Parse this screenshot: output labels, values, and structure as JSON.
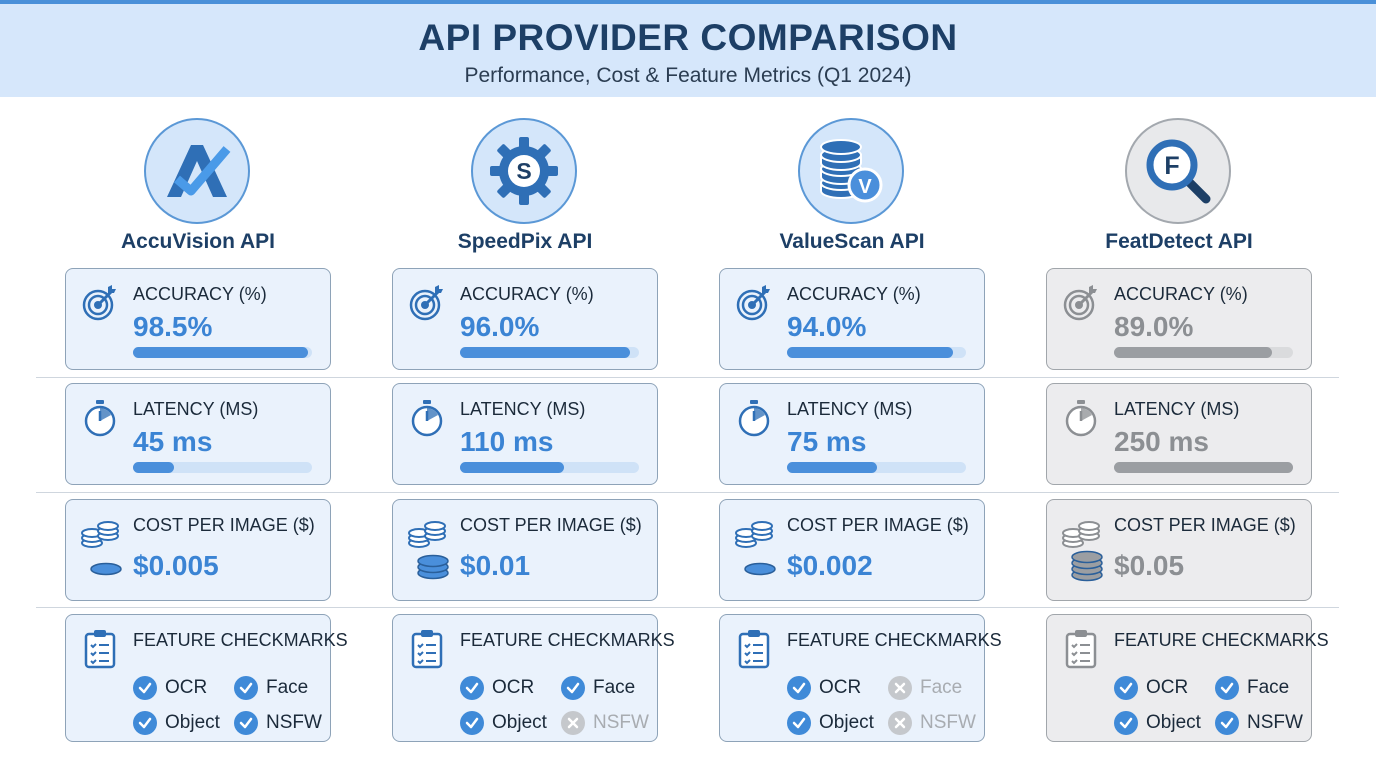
{
  "header": {
    "title": "API PROVIDER COMPARISON",
    "subtitle": "Performance, Cost & Feature Metrics (Q1 2024)"
  },
  "metric_labels": {
    "accuracy": "ACCURACY (%)",
    "latency": "LATENCY (MS)",
    "cost": "COST PER IMAGE ($)",
    "features": "FEATURE CHECKMARKS"
  },
  "feature_names": [
    "OCR",
    "Face",
    "Object",
    "NSFW"
  ],
  "colors": {
    "accent": "#4a8fdb",
    "header_bg": "#d6e7fb",
    "gray": "#9b9ea2",
    "title": "#1d3f66"
  },
  "providers": [
    {
      "name": "AccuVision API",
      "logo_icon": "accuvision-logo-icon",
      "accuracy": "98.5%",
      "accuracy_level": 98.5,
      "latency": "45 ms",
      "latency_level": 0.23,
      "cost": "$0.005",
      "features": [
        true,
        true,
        true,
        true
      ]
    },
    {
      "name": "SpeedPix API",
      "logo_icon": "speedpix-gear-logo-icon",
      "accuracy": "96.0%",
      "accuracy_level": 96.0,
      "latency": "110 ms",
      "latency_level": 0.58,
      "cost": "$0.01",
      "features": [
        true,
        true,
        true,
        false
      ]
    },
    {
      "name": "ValueScan API",
      "logo_icon": "valuescan-database-logo-icon",
      "accuracy": "94.0%",
      "accuracy_level": 94.0,
      "latency": "75 ms",
      "latency_level": 0.5,
      "cost": "$0.002",
      "features": [
        true,
        false,
        true,
        false
      ]
    },
    {
      "name": "FeatDetect API",
      "logo_icon": "featdetect-magnifier-logo-icon",
      "accuracy": "89.0%",
      "accuracy_level": 89.0,
      "latency": "250 ms",
      "latency_level": 1.0,
      "cost": "$0.05",
      "features": [
        true,
        true,
        true,
        true
      ]
    }
  ]
}
